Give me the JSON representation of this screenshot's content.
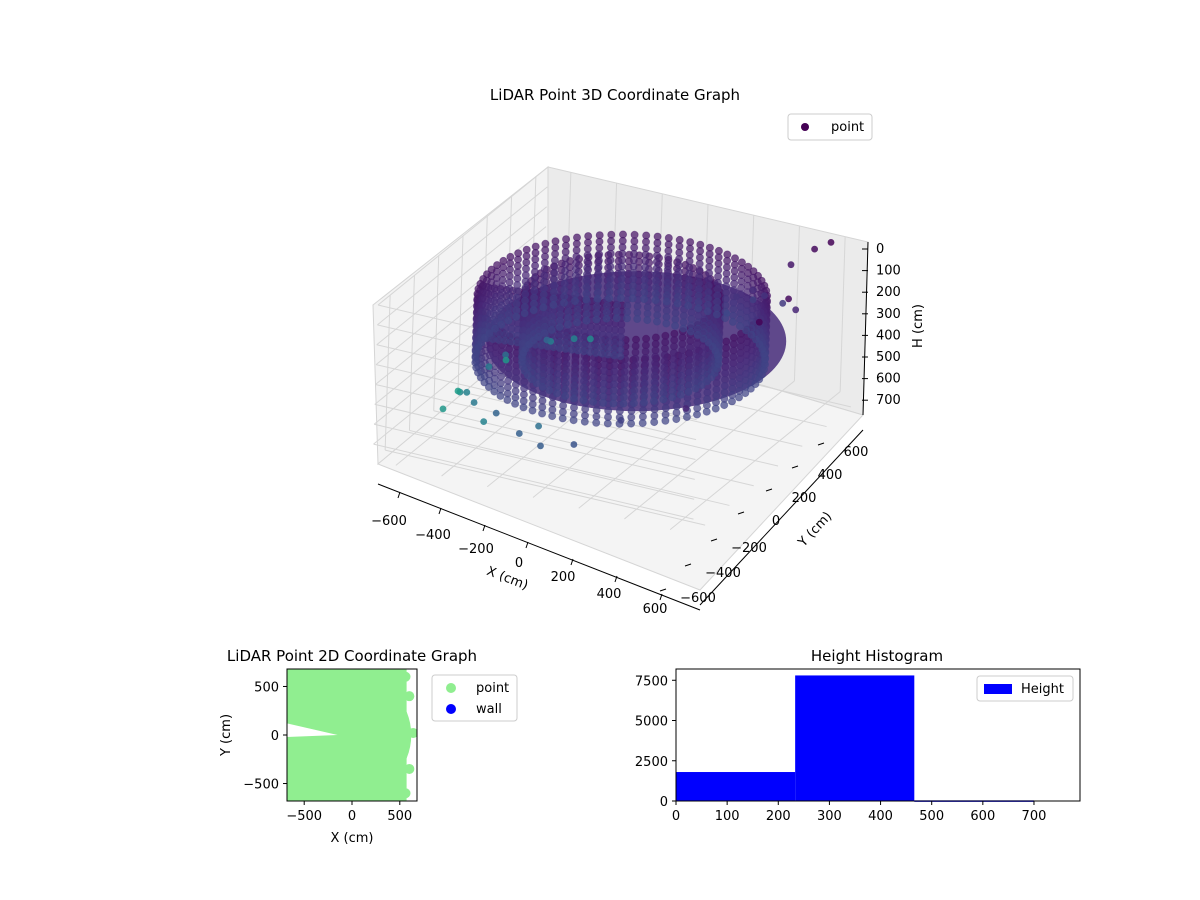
{
  "chart_data": [
    {
      "type": "scatter3d",
      "title": "LiDAR Point 3D Coordinate Graph",
      "xlabel": "X (cm)",
      "ylabel": "Y (cm)",
      "zlabel": "H (cm)",
      "xlim": [
        -700,
        700
      ],
      "ylim": [
        -700,
        700
      ],
      "zlim": [
        0,
        780
      ],
      "z_inverted": true,
      "xticks": [
        "−600",
        "−400",
        "−200",
        "0",
        "200",
        "400",
        "600"
      ],
      "yticks": [
        "600",
        "400",
        "200",
        "0",
        "−200",
        "−400",
        "−600"
      ],
      "zticks": [
        "0",
        "100",
        "200",
        "300",
        "400",
        "500",
        "600",
        "700"
      ],
      "legend": {
        "labels": [
          "point"
        ],
        "placement": "top-right"
      },
      "colormap": "viridis",
      "grid": true,
      "structure": {
        "inner_ring_radius": 380,
        "outer_ring_radius": 560,
        "ring_height_range": [
          120,
          460
        ],
        "floor_height": 280
      },
      "series": [
        {
          "name": "point",
          "color": "#440154",
          "points": [
            [
              -680,
              160,
              480
            ],
            [
              -690,
              20,
              520
            ],
            [
              -600,
              -120,
              540
            ],
            [
              -560,
              300,
              380
            ],
            [
              -320,
              -420,
              700
            ],
            [
              -250,
              -500,
              660
            ],
            [
              -120,
              -600,
              700
            ],
            [
              -100,
              -640,
              720
            ],
            [
              120,
              -560,
              620
            ],
            [
              60,
              -600,
              660
            ],
            [
              420,
              -520,
              690
            ],
            [
              500,
              -460,
              700
            ],
            [
              560,
              -420,
              720
            ],
            [
              600,
              420,
              140
            ],
            [
              640,
              500,
              60
            ],
            [
              660,
              560,
              20
            ],
            [
              520,
              300,
              260
            ],
            [
              500,
              240,
              300
            ],
            [
              540,
              180,
              420
            ],
            [
              -600,
              600,
              220
            ],
            [
              -100,
              650,
              20
            ],
            [
              200,
              620,
              60
            ],
            [
              380,
              560,
              220
            ],
            [
              580,
              400,
              330
            ],
            [
              560,
              330,
              300
            ],
            [
              600,
              260,
              360
            ],
            [
              -200,
              -660,
              760
            ],
            [
              0,
              -700,
              780
            ],
            [
              300,
              -650,
              760
            ],
            [
              -450,
              -300,
              560
            ],
            [
              250,
              -450,
              580
            ],
            [
              -380,
              -150,
              620
            ]
          ]
        }
      ]
    },
    {
      "type": "scatter",
      "title": "LiDAR Point 2D Coordinate Graph",
      "xlabel": "X (cm)",
      "ylabel": "Y (cm)",
      "xlim": [
        -680,
        680
      ],
      "ylim": [
        -680,
        680
      ],
      "xticks": [
        -500,
        0,
        500
      ],
      "yticks": [
        500,
        0,
        -500
      ],
      "legend": {
        "labels": [
          "point",
          "wall"
        ],
        "placement": "right"
      },
      "series": [
        {
          "name": "point",
          "color": "#90ee90",
          "region": "disk",
          "radius": 620,
          "notch": {
            "x_max": -300,
            "y_min": 0,
            "y_max": 50
          }
        },
        {
          "name": "wall",
          "color": "#0000ff",
          "points": []
        }
      ]
    },
    {
      "type": "histogram",
      "title": "Height Histogram",
      "xlim": [
        0,
        790
      ],
      "ylim": [
        0,
        8200
      ],
      "xticks": [
        0,
        100,
        200,
        300,
        400,
        500,
        600,
        700
      ],
      "yticks": [
        0,
        2500,
        5000,
        7500
      ],
      "legend": {
        "labels": [
          "Height"
        ],
        "placement": "top-right"
      },
      "series": [
        {
          "name": "Height",
          "color": "#0000ff",
          "bins": [
            0,
            233,
            466,
            700
          ],
          "counts": [
            1800,
            7800,
            40
          ]
        }
      ]
    }
  ]
}
